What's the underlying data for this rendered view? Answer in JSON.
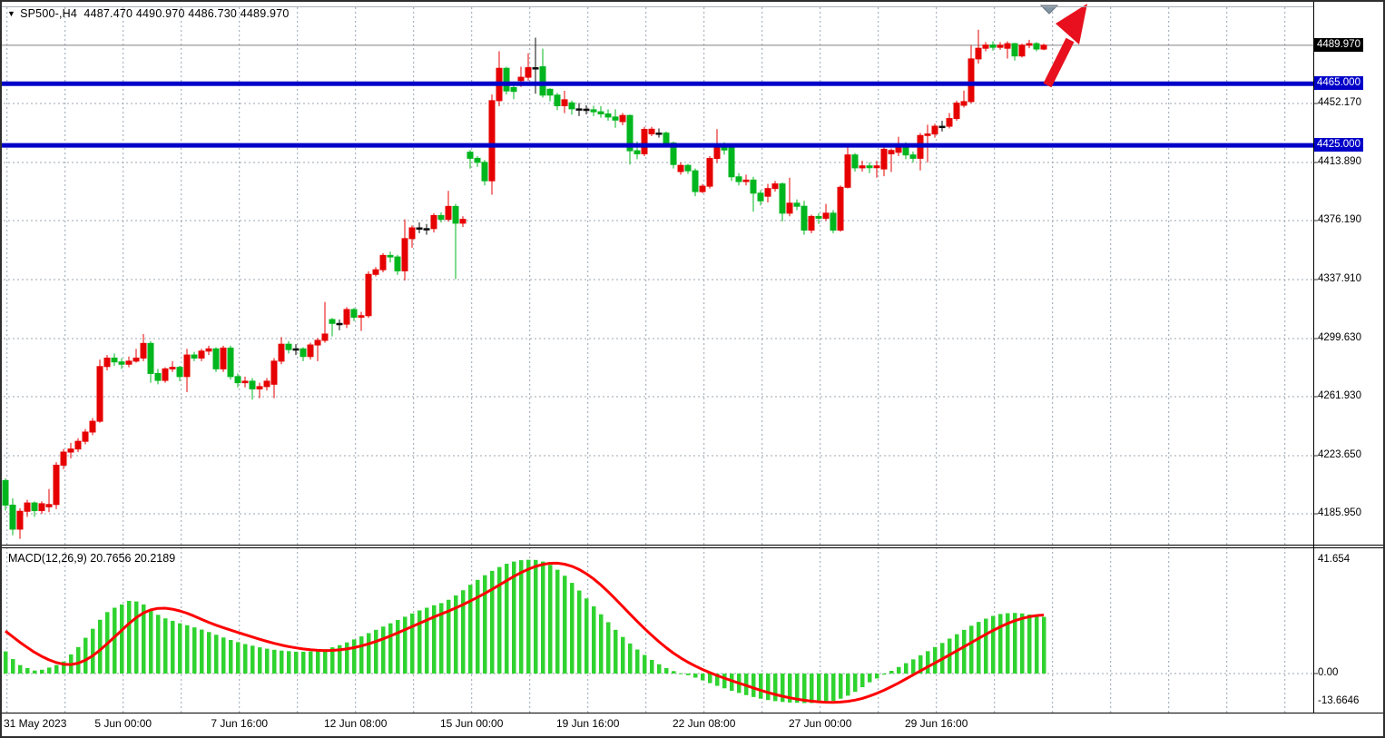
{
  "title": {
    "expand_icon": "▼",
    "symbol_timeframe": "SP500-,H4",
    "open": "4487.470",
    "high": "4490.970",
    "low": "4486.730",
    "close": "4489.970"
  },
  "indicator": {
    "label": "MACD(12,26,9) 20.7656 20.2189"
  },
  "price_axis": {
    "current_badge": {
      "label": "4489.970",
      "value": 4489.97
    },
    "level_badges": [
      {
        "label": "4465.000",
        "value": 4465
      },
      {
        "label": "4425.000",
        "value": 4425
      }
    ],
    "ticks": [
      {
        "label": "4452.170",
        "value": 4452.17
      },
      {
        "label": "4413.890",
        "value": 4413.89
      },
      {
        "label": "4376.190",
        "value": 4376.19
      },
      {
        "label": "4337.910",
        "value": 4337.91
      },
      {
        "label": "4299.630",
        "value": 4299.63
      },
      {
        "label": "4261.930",
        "value": 4261.93
      },
      {
        "label": "4223.650",
        "value": 4223.65
      },
      {
        "label": "4185.950",
        "value": 4185.95
      }
    ]
  },
  "macd_axis": {
    "ticks": [
      {
        "label": "41.654",
        "value": 41.654
      },
      {
        "label": "0.00",
        "value": 0
      },
      {
        "label": "-13.6646",
        "value": -13.6646
      }
    ]
  },
  "time_axis": {
    "labels": [
      "31 May 2023",
      "5 Jun 00:00",
      "7 Jun 16:00",
      "12 Jun 08:00",
      "15 Jun 00:00",
      "19 Jun 16:00",
      "22 Jun 08:00",
      "27 Jun 00:00",
      "29 Jun 16:00"
    ]
  },
  "colors": {
    "bull": "#e60000",
    "bear": "#00b61e",
    "doji": "#0a0a0a",
    "macd_hist": "#2fd32f",
    "macd_signal": "#ff0000",
    "hline_blue": "#0000c8",
    "grid": "#98a4b2",
    "current_line": "#808080",
    "badge_current_bg": "#000000",
    "badge_level_bg": "#0000c8",
    "arrow_red": "#e8101e",
    "marker_gray": "#8296a6"
  },
  "chart_data": {
    "type": "candlestick",
    "title": "SP500-,H4 4487.470 4490.970 4486.730 4489.970",
    "x_labels": [
      "31 May 2023",
      "5 Jun 00:00",
      "7 Jun 16:00",
      "12 Jun 08:00",
      "15 Jun 00:00",
      "19 Jun 16:00",
      "22 Jun 08:00",
      "27 Jun 00:00",
      "29 Jun 16:00"
    ],
    "bars_per_label": 16,
    "price_ticks": [
      4452.17,
      4413.89,
      4376.19,
      4337.91,
      4299.63,
      4261.93,
      4223.65,
      4185.95
    ],
    "ylim": [
      4163,
      4512
    ],
    "hlines": [
      4465,
      4425
    ],
    "current_price": 4489.97,
    "grid": "dashed",
    "candles_format": "[open, high, low, close]",
    "candles": [
      [
        4207.5,
        4209,
        4188,
        4191.6
      ],
      [
        4191.6,
        4196,
        4172,
        4176
      ],
      [
        4176,
        4189.5,
        4169.7,
        4187.6
      ],
      [
        4187.6,
        4195,
        4184,
        4193
      ],
      [
        4193,
        4194,
        4184,
        4188
      ],
      [
        4188,
        4194,
        4186,
        4192.5
      ],
      [
        4190.5,
        4202,
        4187,
        4192
      ],
      [
        4192,
        4219.5,
        4189,
        4217.5
      ],
      [
        4217.5,
        4228,
        4215,
        4226
      ],
      [
        4226,
        4232,
        4222,
        4228
      ],
      [
        4228,
        4235,
        4226,
        4233
      ],
      [
        4233,
        4241,
        4231,
        4239
      ],
      [
        4239,
        4248,
        4237,
        4246
      ],
      [
        4246,
        4286,
        4245,
        4281.5
      ],
      [
        4281.5,
        4289,
        4279,
        4287
      ],
      [
        4287,
        4290,
        4282,
        4284.5
      ],
      [
        4284.5,
        4287,
        4280,
        4283
      ],
      [
        4283,
        4288,
        4281,
        4285
      ],
      [
        4285,
        4293,
        4284,
        4287
      ],
      [
        4287,
        4302.6,
        4285,
        4296.5
      ],
      [
        4296.5,
        4298,
        4271,
        4277
      ],
      [
        4277,
        4280,
        4270,
        4272.5
      ],
      [
        4272.5,
        4281,
        4271,
        4280
      ],
      [
        4280,
        4285,
        4278,
        4281
      ],
      [
        4281,
        4282,
        4272,
        4275
      ],
      [
        4275,
        4293,
        4265,
        4289
      ],
      [
        4289,
        4291,
        4285,
        4287
      ],
      [
        4287,
        4293,
        4285,
        4291.5
      ],
      [
        4291.5,
        4295,
        4289,
        4293
      ],
      [
        4293,
        4294,
        4278,
        4280
      ],
      [
        4280,
        4295,
        4278,
        4293.5
      ],
      [
        4293.5,
        4295,
        4273,
        4275
      ],
      [
        4275,
        4277,
        4268,
        4271
      ],
      [
        4271,
        4275,
        4268,
        4272
      ],
      [
        4272,
        4274,
        4260,
        4267
      ],
      [
        4267,
        4271,
        4261,
        4268.5
      ],
      [
        4268.5,
        4274,
        4266,
        4272
      ],
      [
        4270,
        4287,
        4261,
        4285
      ],
      [
        4285,
        4300.6,
        4283,
        4296
      ],
      [
        4296,
        4298,
        4290,
        4292.5
      ],
      [
        4292.5,
        4296,
        4289,
        4293
      ],
      [
        4293,
        4294,
        4285,
        4288
      ],
      [
        4288,
        4297,
        4286,
        4295.5
      ],
      [
        4295.5,
        4300,
        4285,
        4298.5
      ],
      [
        4298.5,
        4323.4,
        4297,
        4302.6
      ],
      [
        4312,
        4313,
        4301,
        4309.5
      ],
      [
        4309.5,
        4312,
        4305,
        4309
      ],
      [
        4309,
        4320,
        4306.5,
        4318.5
      ],
      [
        4318.5,
        4319.5,
        4311,
        4313.5
      ],
      [
        4313.5,
        4317,
        4304.6,
        4314.5
      ],
      [
        4314.5,
        4343.3,
        4313,
        4341.3
      ],
      [
        4341.3,
        4346,
        4340,
        4344.3
      ],
      [
        4344.3,
        4355,
        4342.6,
        4353.6
      ],
      [
        4353.6,
        4356,
        4349,
        4352.6
      ],
      [
        4352.6,
        4354,
        4341,
        4343.6
      ],
      [
        4343.6,
        4377,
        4337.3,
        4364.5
      ],
      [
        4364.5,
        4373,
        4358.6,
        4371.5
      ],
      [
        4371.5,
        4375,
        4368,
        4371.5
      ],
      [
        4371,
        4374,
        4367,
        4371
      ],
      [
        4371,
        4381,
        4368.5,
        4379.5
      ],
      [
        4379.5,
        4381.5,
        4375,
        4377
      ],
      [
        4377,
        4395.5,
        4375.5,
        4385.4
      ],
      [
        4385.4,
        4387,
        4338.3,
        4374.5
      ],
      [
        4374.5,
        4379,
        4372,
        4377
      ],
      [
        4420.6,
        4422,
        4410,
        4416.6
      ],
      [
        4416.6,
        4418,
        4411,
        4414
      ],
      [
        4414,
        4415.5,
        4399,
        4402
      ],
      [
        4402,
        4458,
        4393,
        4454
      ],
      [
        4454,
        4486,
        4450.4,
        4475
      ],
      [
        4475,
        4476,
        4458,
        4460.3
      ],
      [
        4462.5,
        4464,
        4455,
        4460
      ],
      [
        4467,
        4476,
        4463,
        4469.2
      ],
      [
        4469.2,
        4484.7,
        4467,
        4475.4
      ],
      [
        4475.4,
        4494.9,
        4458.5,
        4475
      ],
      [
        4476,
        4487.7,
        4456,
        4457.6
      ],
      [
        4461.4,
        4462,
        4453.6,
        4457.6
      ],
      [
        4457.6,
        4459,
        4447.8,
        4450.7
      ],
      [
        4450.7,
        4460.4,
        4445.9,
        4454.6
      ],
      [
        4452.6,
        4454,
        4444.9,
        4448.7
      ],
      [
        4448.7,
        4452.5,
        4444,
        4448.7
      ],
      [
        4448.5,
        4451,
        4445,
        4448.1
      ],
      [
        4448.1,
        4450.7,
        4444,
        4446.8
      ],
      [
        4446.8,
        4450.4,
        4443,
        4445.4
      ],
      [
        4445.4,
        4448.4,
        4441,
        4443.4
      ],
      [
        4443.4,
        4448.4,
        4436.4,
        4441.4
      ],
      [
        4440.4,
        4446,
        4438,
        4444.4
      ],
      [
        4444.4,
        4445,
        4412.6,
        4421.5
      ],
      [
        4421.5,
        4427.5,
        4416,
        4419.5
      ],
      [
        4419.5,
        4437,
        4418,
        4435.4
      ],
      [
        4432.5,
        4437,
        4431,
        4435.5
      ],
      [
        4433,
        4436,
        4430,
        4433
      ],
      [
        4433,
        4434,
        4424.5,
        4426.5
      ],
      [
        4426.5,
        4427.5,
        4410,
        4412.6
      ],
      [
        4408,
        4414,
        4406,
        4412
      ],
      [
        4412,
        4413,
        4406.5,
        4408.5
      ],
      [
        4408.5,
        4410,
        4392,
        4395
      ],
      [
        4395,
        4400,
        4394,
        4398.5
      ],
      [
        4398.5,
        4418,
        4397,
        4416.5
      ],
      [
        4416.5,
        4435.5,
        4413.5,
        4424.8
      ],
      [
        4424.8,
        4427,
        4419,
        4422
      ],
      [
        4423.6,
        4425,
        4402,
        4404.6
      ],
      [
        4404.6,
        4407,
        4399,
        4401.5
      ],
      [
        4401.5,
        4406,
        4399,
        4402.5
      ],
      [
        4402.5,
        4404.6,
        4382,
        4394
      ],
      [
        4394,
        4396,
        4386,
        4389
      ],
      [
        4392,
        4400,
        4388,
        4397
      ],
      [
        4397,
        4402,
        4395,
        4400
      ],
      [
        4400,
        4401,
        4375.6,
        4381
      ],
      [
        4381,
        4404,
        4379,
        4387.5
      ],
      [
        4387.5,
        4390,
        4383,
        4385.5
      ],
      [
        4385.5,
        4389,
        4367,
        4370
      ],
      [
        4370,
        4380,
        4368,
        4378.9
      ],
      [
        4378.9,
        4381,
        4374,
        4377.7
      ],
      [
        4377.7,
        4387,
        4376,
        4381
      ],
      [
        4381,
        4383,
        4368,
        4370
      ],
      [
        4370,
        4399,
        4369,
        4397.8
      ],
      [
        4397.8,
        4425,
        4397,
        4418.8
      ],
      [
        4418.8,
        4420,
        4408,
        4410.4
      ],
      [
        4410.4,
        4415,
        4408,
        4411.7
      ],
      [
        4411.7,
        4414,
        4407,
        4410.5
      ],
      [
        4410.5,
        4415,
        4404,
        4411.7
      ],
      [
        4409.7,
        4424,
        4405,
        4422.5
      ],
      [
        4419.5,
        4423,
        4407.7,
        4421.7
      ],
      [
        4420.5,
        4430.6,
        4418,
        4425.4
      ],
      [
        4425.4,
        4427,
        4416,
        4418.8
      ],
      [
        4418.8,
        4421,
        4414,
        4416.6
      ],
      [
        4416.6,
        4433,
        4408.7,
        4431.4
      ],
      [
        4431.4,
        4438.4,
        4414,
        4432.4
      ],
      [
        4432.4,
        4439,
        4430,
        4437.4
      ],
      [
        4437.4,
        4441,
        4434,
        4437.4
      ],
      [
        4437.4,
        4446,
        4436,
        4442.4
      ],
      [
        4442.4,
        4454,
        4441,
        4452.4
      ],
      [
        4451,
        4460.5,
        4449.5,
        4453.4
      ],
      [
        4453.4,
        4490.1,
        4452.4,
        4481.1
      ],
      [
        4481.1,
        4500,
        4478,
        4488
      ],
      [
        4488,
        4492,
        4486,
        4490.1
      ],
      [
        4490.1,
        4492.5,
        4486.5,
        4488.6
      ],
      [
        4488.6,
        4492,
        4487,
        4490
      ],
      [
        4488,
        4492.5,
        4481.3,
        4491
      ],
      [
        4491,
        4491.5,
        4480,
        4483
      ],
      [
        4483,
        4491,
        4482,
        4490
      ],
      [
        4490,
        4493.5,
        4488,
        4491
      ],
      [
        4491,
        4492,
        4486,
        4487.5
      ],
      [
        4487.47,
        4490.97,
        4486.73,
        4489.97
      ]
    ],
    "macd": {
      "type": "bar+line",
      "label": "MACD(12,26,9) 20.7656 20.2189",
      "macd_value": 20.7656,
      "signal_value": 20.2189,
      "ylim": [
        -13.6646,
        41.654
      ],
      "signal_seed": [
        24,
        21.5,
        19,
        17,
        15,
        13.5,
        12,
        10
      ],
      "values": [
        8.1,
        5.3,
        3.1,
        2.0,
        1.1,
        1.4,
        2.2,
        3.1,
        4.4,
        7.0,
        9.7,
        13.1,
        16.4,
        19.7,
        22.5,
        24.1,
        25.3,
        26.6,
        26.4,
        25.3,
        23.5,
        21.5,
        20.2,
        19.3,
        18.4,
        17.7,
        16.9,
        16.1,
        15.2,
        14.2,
        13.2,
        12.3,
        11.5,
        10.8,
        10.2,
        9.6,
        9.1,
        8.7,
        8.4,
        8.2,
        8.0,
        8.0,
        8.1,
        8.4,
        8.9,
        9.6,
        10.4,
        11.4,
        12.5,
        13.6,
        14.8,
        16.0,
        17.2,
        18.4,
        19.6,
        20.8,
        22.0,
        23.1,
        24.1,
        25.0,
        25.8,
        27.0,
        28.6,
        30.5,
        32.5,
        34.3,
        36.0,
        37.6,
        39.0,
        40.2,
        41.0,
        41.5,
        41.654,
        41.6,
        41.0,
        39.8,
        38.0,
        35.8,
        33.2,
        30.4,
        27.5,
        24.6,
        21.7,
        18.8,
        16.0,
        13.4,
        11.0,
        8.8,
        6.8,
        5.0,
        3.4,
        2.0,
        0.9,
        0.1,
        -0.6,
        -1.5,
        -2.5,
        -3.5,
        -4.5,
        -5.4,
        -6.3,
        -7.1,
        -7.9,
        -8.6,
        -9.2,
        -9.7,
        -10.1,
        -10.4,
        -10.6,
        -10.7,
        -10.8,
        -10.8,
        -10.8,
        -10.5,
        -10.0,
        -9.2,
        -8.1,
        -6.7,
        -5.0,
        -3.2,
        -1.8,
        -0.4,
        1.0,
        2.4,
        3.8,
        5.2,
        6.7,
        8.2,
        9.7,
        11.2,
        12.8,
        14.4,
        16.0,
        17.5,
        18.9,
        20.1,
        21.1,
        21.8,
        22.1,
        22.2,
        22.0,
        21.6,
        21.2,
        20.7656
      ]
    },
    "annotations": [
      {
        "type": "arrow-up-right",
        "color": "red",
        "near": "last bars top right"
      },
      {
        "type": "triangle-down-marker",
        "color": "gray",
        "near": "top of last bar"
      }
    ]
  }
}
